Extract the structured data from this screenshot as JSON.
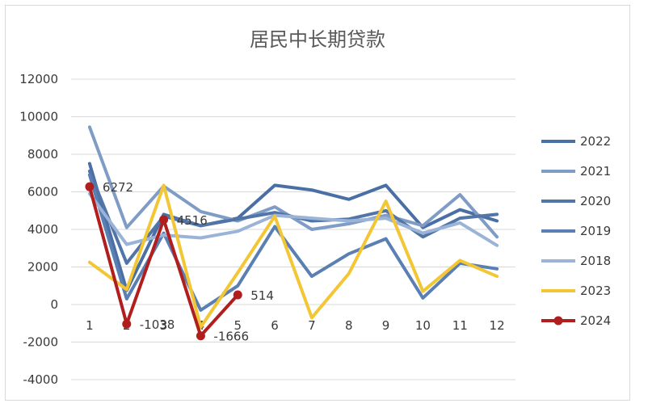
{
  "chart_data": {
    "type": "line",
    "title": "居民中长期贷款",
    "xlabel": "",
    "ylabel": "",
    "categories": [
      "1",
      "2",
      "3",
      "4",
      "5",
      "6",
      "7",
      "8",
      "9",
      "10",
      "11",
      "12"
    ],
    "ylim": [
      -4000,
      12000
    ],
    "yticks": [
      12000,
      10000,
      8000,
      6000,
      4000,
      2000,
      0,
      -2000,
      -4000
    ],
    "grid": true,
    "legend": "right",
    "series": [
      {
        "name": "2022",
        "color": "#4a6fa5",
        "width": 4,
        "values": [
          7500,
          750,
          4800,
          4200,
          4600,
          6350,
          6100,
          5600,
          6350,
          4100,
          5050,
          4450
        ]
      },
      {
        "name": "2021",
        "color": "#7f9cc7",
        "width": 4,
        "values": [
          9450,
          4100,
          6300,
          4950,
          4450,
          5200,
          4000,
          4300,
          4750,
          4200,
          5850,
          3600
        ]
      },
      {
        "name": "2020",
        "color": "#5275a8",
        "width": 4,
        "values": [
          7100,
          2200,
          4700,
          4200,
          4550,
          4900,
          4450,
          4550,
          5000,
          3600,
          4600,
          4800
        ]
      },
      {
        "name": "2019",
        "color": "#5a7fb3",
        "width": 4,
        "values": [
          6900,
          300,
          3800,
          -300,
          1000,
          4150,
          1500,
          2700,
          3500,
          350,
          2200,
          1900
        ]
      },
      {
        "name": "2018",
        "color": "#9bb3d6",
        "width": 4,
        "values": [
          5900,
          3200,
          3700,
          3550,
          3900,
          4750,
          4600,
          4450,
          4600,
          3800,
          4350,
          3150
        ]
      },
      {
        "name": "2023",
        "color": "#f2c634",
        "width": 4,
        "values": [
          2250,
          800,
          6350,
          -1200,
          1700,
          4700,
          -700,
          1650,
          5500,
          700,
          2350,
          1500
        ]
      },
      {
        "name": "2024",
        "color": "#b01e1e",
        "width": 4,
        "marker": true,
        "values": [
          6272,
          -1038,
          4516,
          -1666,
          514,
          null,
          null,
          null,
          null,
          null,
          null,
          null
        ]
      }
    ],
    "data_labels": [
      {
        "series": "2024",
        "index": 0,
        "text": "6272"
      },
      {
        "series": "2024",
        "index": 1,
        "text": "-1038"
      },
      {
        "series": "2024",
        "index": 2,
        "text": "4516"
      },
      {
        "series": "2024",
        "index": 3,
        "text": "-1666"
      },
      {
        "series": "2024",
        "index": 4,
        "text": "514"
      }
    ]
  }
}
